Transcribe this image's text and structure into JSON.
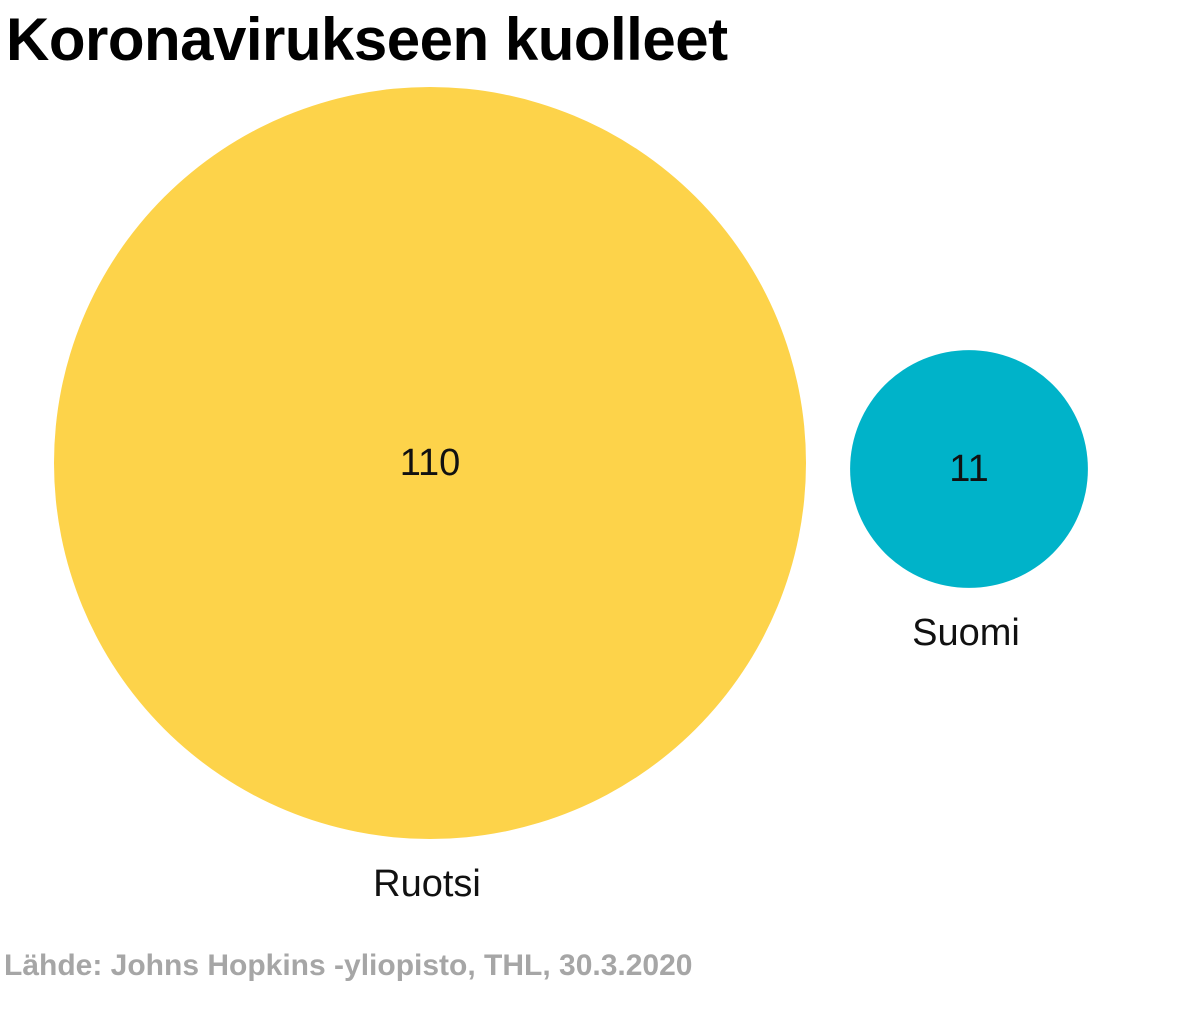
{
  "chart_data": {
    "type": "bubble",
    "title": "Koronavirukseen kuolleet",
    "series": [
      {
        "name": "Ruotsi",
        "value": 110,
        "value_label": "110",
        "color": "#fdd34a"
      },
      {
        "name": "Suomi",
        "value": 11,
        "value_label": "11",
        "color": "#00b3c9"
      }
    ],
    "source": "Lähde: Johns Hopkins -yliopisto, THL, 30.3.2020"
  }
}
